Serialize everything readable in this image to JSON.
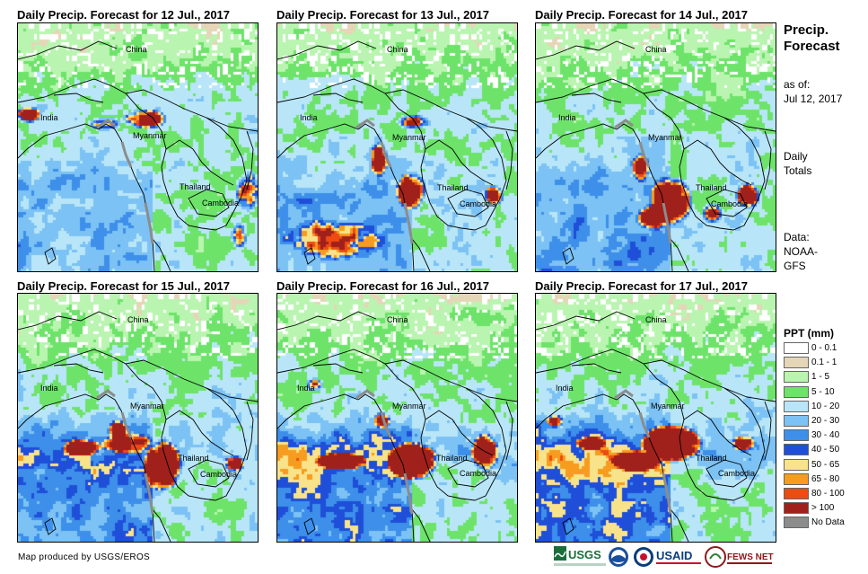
{
  "panels": [
    {
      "title": "Daily Precip. Forecast for 12 Jul., 2017"
    },
    {
      "title": "Daily Precip. Forecast for 13 Jul., 2017"
    },
    {
      "title": "Daily Precip. Forecast for 14 Jul., 2017"
    },
    {
      "title": "Daily Precip. Forecast for 15 Jul., 2017"
    },
    {
      "title": "Daily Precip. Forecast for 16 Jul., 2017"
    },
    {
      "title": "Daily Precip. Forecast for 17 Jul., 2017"
    }
  ],
  "country_labels": {
    "china": "China",
    "india": "India",
    "myanmar": "Myanmar",
    "thailand": "Thailand",
    "cambodia": "Cambodia"
  },
  "sidebar": {
    "title_line1": "Precip.",
    "title_line2": "Forecast",
    "asof_label": "as of:",
    "asof_date": "Jul 12, 2017",
    "totals_line1": "Daily",
    "totals_line2": "Totals",
    "data_line1": "Data:",
    "data_line2": "NOAA-",
    "data_line3": "GFS"
  },
  "legend": {
    "title": "PPT (mm)",
    "items": [
      {
        "label": "0 - 0.1",
        "color": "#ffffff"
      },
      {
        "label": "0.1 - 1",
        "color": "#e6d6b8"
      },
      {
        "label": "1 - 5",
        "color": "#b9f5b0"
      },
      {
        "label": "5 - 10",
        "color": "#6de36a"
      },
      {
        "label": "10 - 20",
        "color": "#b8e6f8"
      },
      {
        "label": "20 - 30",
        "color": "#7cc2f4"
      },
      {
        "label": "30 - 40",
        "color": "#3d8fea"
      },
      {
        "label": "40 - 50",
        "color": "#1f4fd8"
      },
      {
        "label": "50 - 65",
        "color": "#f9e38a"
      },
      {
        "label": "65 - 80",
        "color": "#f79c1f"
      },
      {
        "label": "80 - 100",
        "color": "#ee4a14"
      },
      {
        "label": "> 100",
        "color": "#a0201b"
      },
      {
        "label": "No Data",
        "color": "#8c8c8c"
      }
    ]
  },
  "credit": "Map produced by USGS/EROS",
  "logos": {
    "usgs": "USGS",
    "usaid": "USAID",
    "fewsnet": "FEWS NET"
  }
}
